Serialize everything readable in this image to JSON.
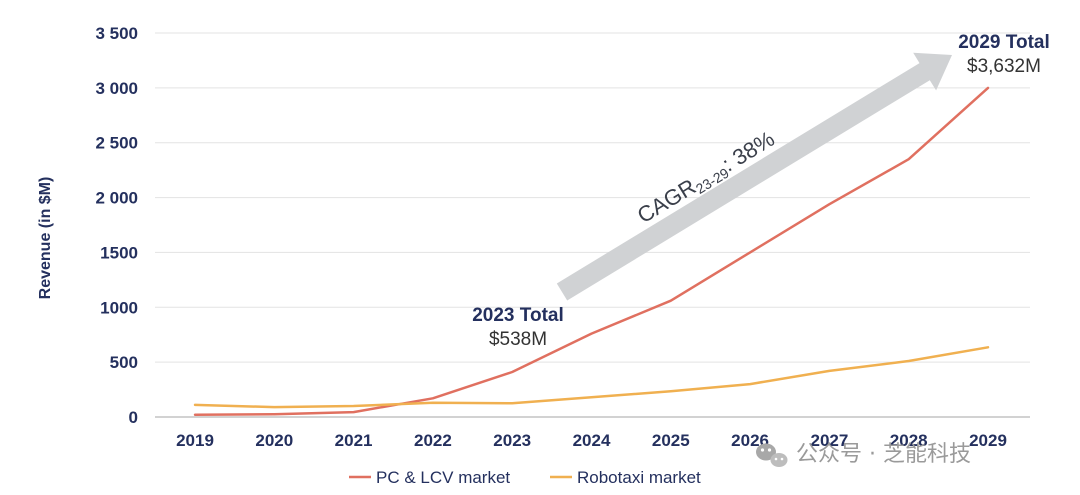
{
  "chart_data": {
    "type": "line",
    "ylabel": "Revenue (in $M)",
    "ylim": [
      0,
      3500
    ],
    "yticks": [
      "0",
      "500",
      "1000",
      "1500",
      "2 000",
      "2 500",
      "3 000",
      "3 500"
    ],
    "grid": true,
    "legend_position": "bottom",
    "x": [
      "2019",
      "2020",
      "2021",
      "2022",
      "2023",
      "2024",
      "2025",
      "2026",
      "2027",
      "2028",
      "2029"
    ],
    "series": [
      {
        "name": "PC & LCV market",
        "color": "#e07060",
        "values": [
          20,
          25,
          45,
          170,
          410,
          760,
          1060,
          1500,
          1940,
          2350,
          3000
        ]
      },
      {
        "name": "Robotaxi market",
        "color": "#f0b050",
        "values": [
          110,
          90,
          100,
          130,
          125,
          180,
          235,
          300,
          420,
          510,
          635
        ]
      }
    ],
    "annotations": {
      "start": {
        "title": "2023 Total",
        "value": "$538M"
      },
      "end": {
        "title": "2029 Total",
        "value": "$3,632M"
      },
      "cagr": {
        "main": "CAGR",
        "sub": "23-29",
        "rest": ": 38%"
      }
    }
  },
  "watermark": {
    "text": "公众号 · 芝能科技",
    "icon": "wechat-icon"
  }
}
